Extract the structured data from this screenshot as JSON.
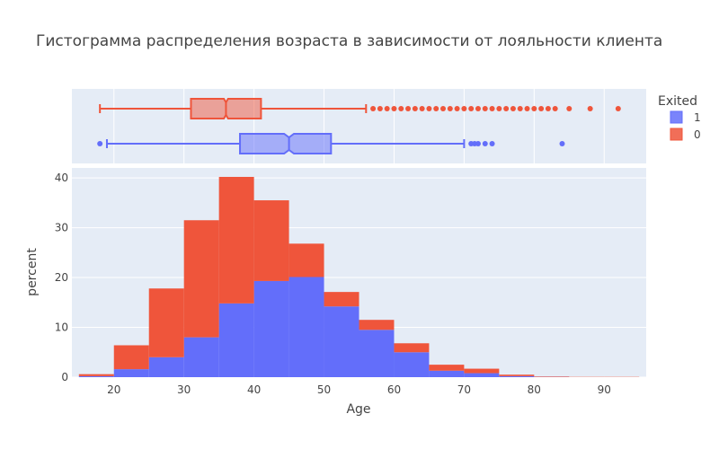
{
  "colors": {
    "exited_1": "#636efa",
    "exited_0": "#ef553b",
    "plot_bg": "#e5ecf6",
    "grid": "#ffffff"
  },
  "chart_data": {
    "type": "bar",
    "title": "Гистограмма распределения возраста в зависимости от лояльности клиента",
    "xlabel": "Age",
    "ylabel": "percent",
    "xlim": [
      14,
      96
    ],
    "ylim": [
      0,
      42
    ],
    "xticks": [
      20,
      30,
      40,
      50,
      60,
      70,
      80,
      90
    ],
    "yticks": [
      0,
      10,
      20,
      30,
      40
    ],
    "barmode": "stack",
    "bin_edges": [
      15,
      20,
      25,
      30,
      35,
      40,
      45,
      50,
      55,
      60,
      65,
      70,
      75,
      80,
      85,
      90,
      95
    ],
    "legend": {
      "title": "Exited",
      "position": "top-right",
      "entries": [
        "1",
        "0"
      ]
    },
    "series": [
      {
        "name": "1",
        "color": "#636efa",
        "values": [
          0.2,
          1.6,
          4.0,
          8.0,
          14.8,
          19.3,
          20.1,
          14.2,
          9.5,
          5.0,
          1.3,
          0.8,
          0.2,
          0.05,
          0,
          0
        ]
      },
      {
        "name": "0",
        "color": "#ef553b",
        "values": [
          0.4,
          4.8,
          13.8,
          23.5,
          25.4,
          16.2,
          6.7,
          2.9,
          2.0,
          1.8,
          1.2,
          0.9,
          0.3,
          0.1,
          0.05,
          0.05
        ]
      }
    ],
    "box_plots": [
      {
        "name": "0",
        "color": "#ef553b",
        "min": 18,
        "q1": 31,
        "median": 36,
        "q3": 41,
        "upper_fence": 56,
        "notch_low": 35.7,
        "notch_high": 36.3,
        "outliers": [
          57,
          58,
          59,
          60,
          61,
          62,
          63,
          64,
          65,
          66,
          67,
          68,
          69,
          70,
          71,
          72,
          73,
          74,
          75,
          76,
          77,
          78,
          79,
          80,
          81,
          82,
          83,
          85,
          88,
          92
        ]
      },
      {
        "name": "1",
        "color": "#636efa",
        "min": 19,
        "q1": 38,
        "median": 45,
        "q3": 51,
        "upper_fence": 70,
        "notch_low": 44.3,
        "notch_high": 45.7,
        "outliers": [
          18,
          71,
          71.5,
          72,
          73,
          74,
          84
        ]
      }
    ]
  }
}
